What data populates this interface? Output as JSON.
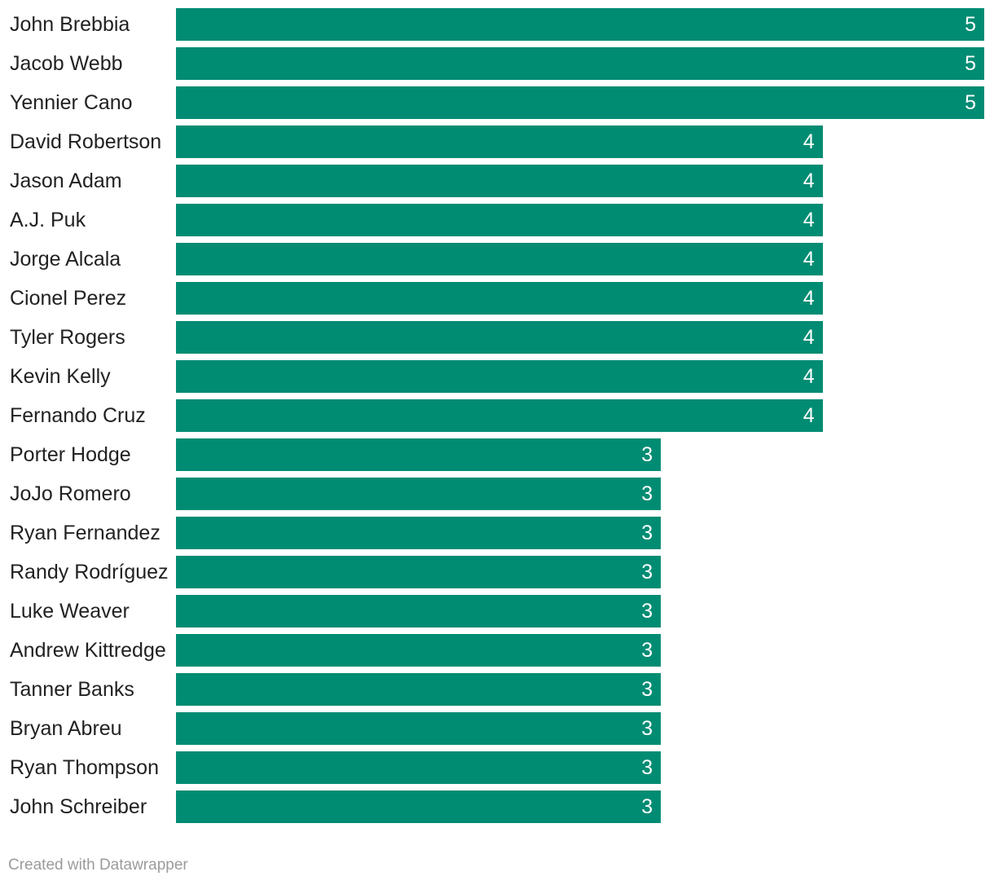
{
  "chart_data": {
    "type": "bar",
    "orientation": "horizontal",
    "title": "",
    "xlabel": "",
    "ylabel": "",
    "xlim": [
      0,
      5
    ],
    "grid": false,
    "legend": false,
    "bar_color": "#008C73",
    "value_label_color": "#FFFFFF",
    "category_label_color": "#222222",
    "categories": [
      "John Brebbia",
      "Jacob Webb",
      "Yennier Cano",
      "David Robertson",
      "Jason Adam",
      "A.J. Puk",
      "Jorge Alcala",
      "Cionel Perez",
      "Tyler Rogers",
      "Kevin Kelly",
      "Fernando Cruz",
      "Porter Hodge",
      "JoJo Romero",
      "Ryan Fernandez",
      "Randy Rodríguez",
      "Luke Weaver",
      "Andrew Kittredge",
      "Tanner Banks",
      "Bryan Abreu",
      "Ryan Thompson",
      "John Schreiber"
    ],
    "values": [
      5,
      5,
      5,
      4,
      4,
      4,
      4,
      4,
      4,
      4,
      4,
      3,
      3,
      3,
      3,
      3,
      3,
      3,
      3,
      3,
      3
    ]
  },
  "footer": {
    "credit": "Created with Datawrapper",
    "color": "#9b9b9b"
  }
}
